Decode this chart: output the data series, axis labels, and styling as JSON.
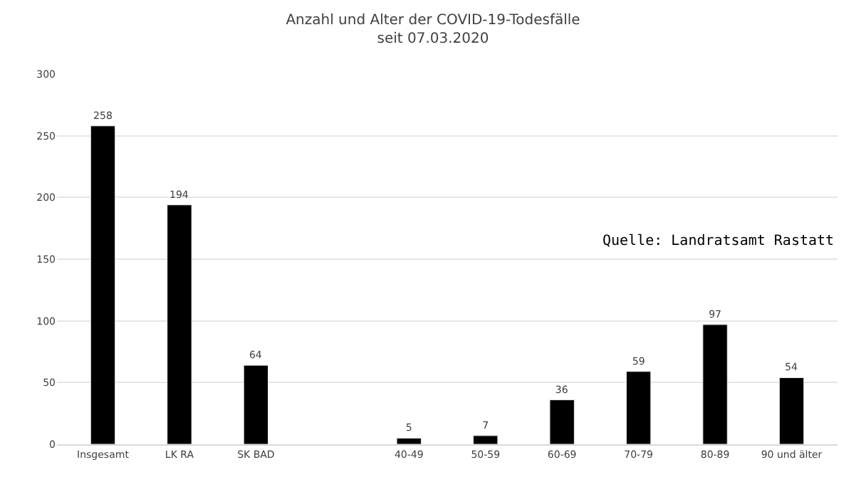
{
  "chart_data": {
    "type": "bar",
    "title": "Anzahl und Alter der COVID-19-Todesfälle",
    "subtitle": "seit 07.03.2020",
    "categories": [
      "Insgesamt",
      "LK RA",
      "SK BAD",
      null,
      "40-49",
      "50-59",
      "60-69",
      "70-79",
      "80-89",
      "90 und älter"
    ],
    "values": [
      258,
      194,
      64,
      null,
      5,
      7,
      36,
      59,
      97,
      54
    ],
    "color": "#000000",
    "ylim": [
      0,
      300
    ],
    "yticks": [
      0,
      50,
      100,
      150,
      200,
      250,
      300
    ],
    "grid": "y",
    "data_labels": true,
    "annotations": [
      "Quelle: Landratsamt Rastatt"
    ]
  }
}
